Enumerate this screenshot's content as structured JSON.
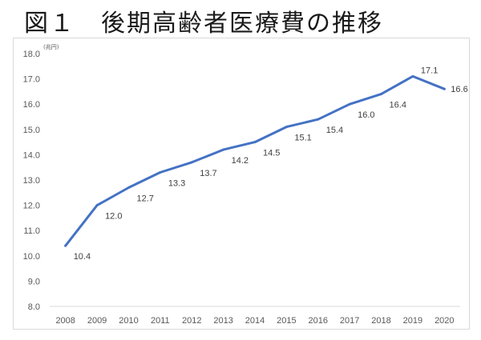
{
  "title": "図１　後期高齢者医療費の推移",
  "chart_data": {
    "type": "line",
    "title": "図１　後期高齢者医療費の推移",
    "unit_label": "(兆円)",
    "xlabel": "",
    "ylabel": "",
    "ylim": [
      8.0,
      18.0
    ],
    "yticks": [
      "8.0",
      "9.0",
      "10.0",
      "11.0",
      "12.0",
      "13.0",
      "14.0",
      "15.0",
      "16.0",
      "17.0",
      "18.0"
    ],
    "grid": false,
    "legend": "none",
    "line_color": "#4472c4",
    "categories": [
      "2008",
      "2009",
      "2010",
      "2011",
      "2012",
      "2013",
      "2014",
      "2015",
      "2016",
      "2017",
      "2018",
      "2019",
      "2020"
    ],
    "series": [
      {
        "values": [
          10.4,
          12.0,
          12.7,
          13.3,
          13.7,
          14.2,
          14.5,
          15.1,
          15.4,
          16.0,
          16.4,
          17.1,
          16.6
        ],
        "labels": [
          "10.4",
          "12.0",
          "12.7",
          "13.3",
          "13.7",
          "14.2",
          "14.5",
          "15.1",
          "15.4",
          "16.0",
          "16.4",
          "17.1",
          "16.6"
        ]
      }
    ]
  }
}
